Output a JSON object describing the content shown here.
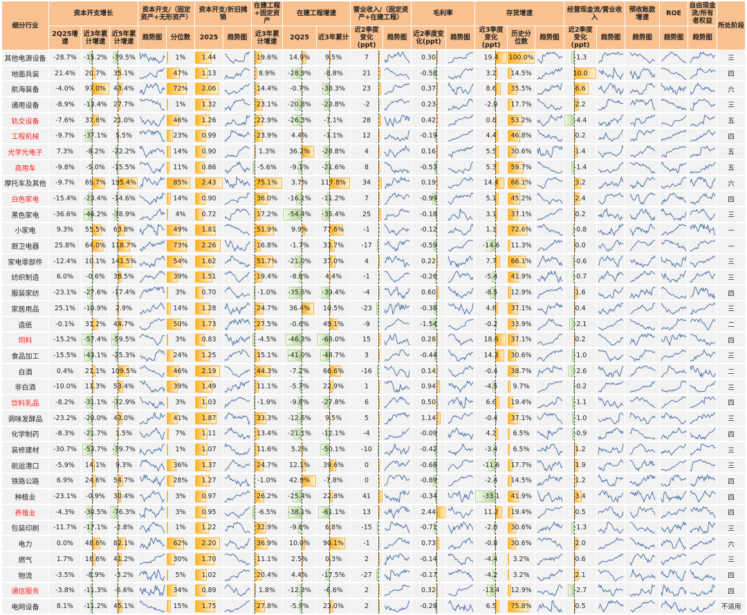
{
  "header": {
    "industry": "细分行业",
    "groups": {
      "capex_growth": "资本开支增长",
      "capex_ratio": "资本开支/（固定资产+无形资产）",
      "capex_dep": "资本开支/折旧摊销",
      "fa_cip": "在建工程+固定资产",
      "cip_growth": "在建工程增速",
      "rev_ratio": "营业收入/（固定资产+在建工程）",
      "gross_margin": "毛利率",
      "inventory": "存货增速",
      "ocf": "经营现金流/营业收入",
      "advance": "预收账款增速",
      "roe": "ROE",
      "fcf": "自由现金流/所有者权益",
      "stage": "所处阶段"
    },
    "sub": [
      "2Q25增速",
      "近3年累计增速",
      "近5年累计增速",
      "趋势图",
      "分位数",
      "2025",
      "趋势图",
      "近3年累计增速",
      "2Q25",
      "近3年累计",
      "近2季度变化(ppt)",
      "趋势图",
      "近2季度变化(ppt)",
      "趋势图",
      "近3季度变化(ppt)",
      "历史分位数",
      "趋势图",
      "近2季度变化(ppt)",
      "趋势图",
      "趋势图",
      "趋势图",
      "趋势图"
    ]
  },
  "colors": {
    "positive_bar": "#FFB422",
    "negative_bar": "#B9D89A",
    "header_bg": "#F9C190",
    "highlight_text": "#FF1E1E",
    "sparkline": "#4A6FA5"
  },
  "rows": [
    {
      "name": "其他电源设备",
      "hl": false,
      "capex_2q25": "-28.7%",
      "capex_3y": "-15.2%",
      "capex_5y": "-39.5%",
      "capex_ratio_pct": "1%",
      "capex_dep_2025": "1.44",
      "fa_cip_3y": "19.6%",
      "cip_2q25": "14.9%",
      "cip_3y": "9.5%",
      "rev_ratio_chg": "7",
      "gm_chg": "0.30",
      "inv_chg": "19.4",
      "inv_pct": "100.0%",
      "ocf_chg": "-1.3",
      "stage": "三"
    },
    {
      "name": "地面兵装",
      "hl": false,
      "capex_2q25": "21.4%",
      "capex_3y": "20.7%",
      "capex_5y": "35.1%",
      "capex_ratio_pct": "47%",
      "capex_dep_2025": "1.13",
      "fa_cip_3y": "8.9%",
      "cip_2q25": "-28.9%",
      "cip_3y": "-8.8%",
      "rev_ratio_chg": "21",
      "gm_chg": "-0.58",
      "inv_chg": "3.2",
      "inv_pct": "14.5%",
      "ocf_chg": "10.0",
      "stage": "四"
    },
    {
      "name": "航海装备",
      "hl": false,
      "capex_2q25": "-4.0%",
      "capex_3y": "97.0%",
      "capex_5y": "43.4%",
      "capex_ratio_pct": "72%",
      "capex_dep_2025": "2.06",
      "fa_cip_3y": "14.4%",
      "cip_2q25": "-0.7%",
      "cip_3y": "-38.3%",
      "rev_ratio_chg": "23",
      "gm_chg": "0.37",
      "inv_chg": "8.6",
      "inv_pct": "35.5%",
      "ocf_chg": "6.6",
      "stage": "六"
    },
    {
      "name": "通用设备",
      "hl": false,
      "capex_2q25": "-8.9%",
      "capex_3y": "-13.4%",
      "capex_5y": "27.7%",
      "capex_ratio_pct": "1%",
      "capex_dep_2025": "1.32",
      "fa_cip_3y": "23.1%",
      "cip_2q25": "-20.8%",
      "cip_3y": "-23.8%",
      "rev_ratio_chg": "-2",
      "gm_chg": "0.23",
      "inv_chg": "-2.0",
      "inv_pct": "17.7%",
      "ocf_chg": "2.2",
      "stage": "三"
    },
    {
      "name": "轨交设备",
      "hl": true,
      "capex_2q25": "-7.6%",
      "capex_3y": "37.6%",
      "capex_5y": "21.0%",
      "capex_ratio_pct": "46%",
      "capex_dep_2025": "1.26",
      "fa_cip_3y": "22.9%",
      "cip_2q25": "-26.3%",
      "cip_3y": "-7.1%",
      "rev_ratio_chg": "28",
      "gm_chg": "0.42",
      "inv_chg": "0.8",
      "inv_pct": "53.2%",
      "ocf_chg": "-4.4",
      "stage": "五"
    },
    {
      "name": "工程机械",
      "hl": true,
      "capex_2q25": "-9.7%",
      "capex_3y": "-37.1%",
      "capex_5y": "5.5%",
      "capex_ratio_pct": "23%",
      "capex_dep_2025": "0.99",
      "fa_cip_3y": "23.9%",
      "cip_2q25": "4.4%",
      "cip_3y": "-1.1%",
      "rev_ratio_chg": "12",
      "gm_chg": "-0.19",
      "inv_chg": "4.4",
      "inv_pct": "46.8%",
      "ocf_chg": "0.2",
      "stage": "四"
    },
    {
      "name": "光学光电子",
      "hl": true,
      "capex_2q25": "7.3%",
      "capex_3y": "-8.2%",
      "capex_5y": "-22.2%",
      "capex_ratio_pct": "14%",
      "capex_dep_2025": "0.90",
      "fa_cip_3y": "1.3%",
      "cip_2q25": "36.2%",
      "cip_3y": "-28.8%",
      "rev_ratio_chg": "4",
      "gm_chg": "0.16",
      "inv_chg": "5.5",
      "inv_pct": "30.6%",
      "ocf_chg": "1.4",
      "stage": "五"
    },
    {
      "name": "商用车",
      "hl": true,
      "capex_2q25": "-9.8%",
      "capex_3y": "-5.0%",
      "capex_5y": "-15.5%",
      "capex_ratio_pct": "11%",
      "capex_dep_2025": "0.86",
      "fa_cip_3y": "-5.6%",
      "cip_2q25": "-9.1%",
      "cip_3y": "-21.6%",
      "rev_ratio_chg": "8",
      "gm_chg": "-0.53",
      "inv_chg": "5.3",
      "inv_pct": "59.7%",
      "ocf_chg": "-1.4",
      "stage": "五"
    },
    {
      "name": "摩托车及其他",
      "hl": false,
      "capex_2q25": "-9.7%",
      "capex_3y": "69.7%",
      "capex_5y": "195.4%",
      "capex_ratio_pct": "85%",
      "capex_dep_2025": "2.43",
      "fa_cip_3y": "75.1%",
      "cip_2q25": "3.7%",
      "cip_3y": "117.8%",
      "rev_ratio_chg": "34",
      "gm_chg": "0.19",
      "inv_chg": "14.4",
      "inv_pct": "66.1%",
      "ocf_chg": "3.2",
      "stage": "六"
    },
    {
      "name": "白色家电",
      "hl": true,
      "capex_2q25": "-15.4%",
      "capex_3y": "-23.4%",
      "capex_5y": "-14.6%",
      "capex_ratio_pct": "14%",
      "capex_dep_2025": "0.90",
      "fa_cip_3y": "36.0%",
      "cip_2q25": "-16.1%",
      "cip_3y": "-11.2%",
      "rev_ratio_chg": "7",
      "gm_chg": "-0.99",
      "inv_chg": "5.1",
      "inv_pct": "45.2%",
      "ocf_chg": "2.4",
      "stage": "四"
    },
    {
      "name": "黑色家电",
      "hl": false,
      "capex_2q25": "-36.6%",
      "capex_3y": "-46.2%",
      "capex_5y": "-38.9%",
      "capex_ratio_pct": "4%",
      "capex_dep_2025": "0.72",
      "fa_cip_3y": "17.2%",
      "cip_2q25": "-54.4%",
      "cip_3y": "-35.4%",
      "rev_ratio_chg": "25",
      "gm_chg": "-0.18",
      "inv_chg": "3.1",
      "inv_pct": "37.1%",
      "ocf_chg": "0.2",
      "stage": "三"
    },
    {
      "name": "小家电",
      "hl": false,
      "capex_2q25": "9.3%",
      "capex_3y": "55.5%",
      "capex_5y": "63.8%",
      "capex_ratio_pct": "49%",
      "capex_dep_2025": "1.81",
      "fa_cip_3y": "51.9%",
      "cip_2q25": "9.9%",
      "cip_3y": "77.6%",
      "rev_ratio_chg": "-1",
      "gm_chg": "-0.12",
      "inv_chg": "1.1",
      "inv_pct": "72.6%",
      "ocf_chg": "-0.8",
      "stage": "一"
    },
    {
      "name": "厨卫电器",
      "hl": false,
      "capex_2q25": "25.8%",
      "capex_3y": "64.0%",
      "capex_5y": "118.7%",
      "capex_ratio_pct": "73%",
      "capex_dep_2025": "2.26",
      "fa_cip_3y": "16.8%",
      "cip_2q25": "-1.7%",
      "cip_3y": "33.7%",
      "rev_ratio_chg": "-17",
      "gm_chg": "-0.59",
      "inv_chg": "-14.6",
      "inv_pct": "11.3%",
      "ocf_chg": "0.0",
      "stage": "一"
    },
    {
      "name": "家电零部件",
      "hl": false,
      "capex_2q25": "-12.4%",
      "capex_3y": "10.1%",
      "capex_5y": "141.5%",
      "capex_ratio_pct": "54%",
      "capex_dep_2025": "1.62",
      "fa_cip_3y": "51.7%",
      "cip_2q25": "-21.0%",
      "cip_3y": "37.0%",
      "rev_ratio_chg": "4",
      "gm_chg": "0.22",
      "inv_chg": "7.7",
      "inv_pct": "66.1%",
      "ocf_chg": "-0.6",
      "stage": "三"
    },
    {
      "name": "纺织制造",
      "hl": false,
      "capex_2q25": "6.0%",
      "capex_3y": "-0.6%",
      "capex_5y": "38.5%",
      "capex_ratio_pct": "39%",
      "capex_dep_2025": "1.51",
      "fa_cip_3y": "19.4%",
      "cip_2q25": "-8.6%",
      "cip_3y": "4.4%",
      "rev_ratio_chg": "-1",
      "gm_chg": "-0.26",
      "inv_chg": "-5.4",
      "inv_pct": "41.9%",
      "ocf_chg": "-0.7",
      "stage": "三"
    },
    {
      "name": "服装家纺",
      "hl": false,
      "capex_2q25": "-23.1%",
      "capex_3y": "-27.6%",
      "capex_5y": "-17.4%",
      "capex_ratio_pct": "3%",
      "capex_dep_2025": "0.70",
      "fa_cip_3y": "-1.0%",
      "cip_2q25": "-35.6%",
      "cip_3y": "-39.4%",
      "rev_ratio_chg": "-4",
      "gm_chg": "0.60",
      "inv_chg": "-8.5",
      "inv_pct": "12.9%",
      "ocf_chg": "1.6",
      "stage": "四"
    },
    {
      "name": "家居用品",
      "hl": false,
      "capex_2q25": "25.1%",
      "capex_3y": "-10.9%",
      "capex_5y": "2.9%",
      "capex_ratio_pct": "14%",
      "capex_dep_2025": "1.28",
      "fa_cip_3y": "24.7%",
      "cip_2q25": "36.4%",
      "cip_3y": "10.5%",
      "rev_ratio_chg": "-23",
      "gm_chg": "-0.38",
      "inv_chg": "4.8",
      "inv_pct": "37.1%",
      "ocf_chg": "0.4",
      "stage": "三"
    },
    {
      "name": "造纸",
      "hl": false,
      "capex_2q25": "-0.1%",
      "capex_3y": "31.2%",
      "capex_5y": "44.7%",
      "capex_ratio_pct": "50%",
      "capex_dep_2025": "1.73",
      "fa_cip_3y": "27.5%",
      "cip_2q25": "-0.6%",
      "cip_3y": "49.1%",
      "rev_ratio_chg": "-9",
      "gm_chg": "-1.54",
      "inv_chg": "-0.2",
      "inv_pct": "33.9%",
      "ocf_chg": "-2.1",
      "stage": "二"
    },
    {
      "name": "饲料",
      "hl": true,
      "capex_2q25": "-15.2%",
      "capex_3y": "-57.4%",
      "capex_5y": "-59.5%",
      "capex_ratio_pct": "3%",
      "capex_dep_2025": "0.83",
      "fa_cip_3y": "-4.5%",
      "cip_2q25": "-46.3%",
      "cip_3y": "-68.0%",
      "rev_ratio_chg": "15",
      "gm_chg": "0.28",
      "inv_chg": "18.6",
      "inv_pct": "37.1%",
      "ocf_chg": "0.2",
      "stage": "四"
    },
    {
      "name": "食品加工",
      "hl": false,
      "capex_2q25": "-15.5%",
      "capex_3y": "-43.1%",
      "capex_5y": "-25.3%",
      "capex_ratio_pct": "24%",
      "capex_dep_2025": "1.25",
      "fa_cip_3y": "15.1%",
      "cip_2q25": "-41.0%",
      "cip_3y": "-48.7%",
      "rev_ratio_chg": "3",
      "gm_chg": "-0.44",
      "inv_chg": "14.3",
      "inv_pct": "30.6%",
      "ocf_chg": "-1.0",
      "stage": "三"
    },
    {
      "name": "白酒",
      "hl": false,
      "capex_2q25": "0.4%",
      "capex_3y": "21.1%",
      "capex_5y": "109.5%",
      "capex_ratio_pct": "46%",
      "capex_dep_2025": "2.19",
      "fa_cip_3y": "44.3%",
      "cip_2q25": "-7.2%",
      "cip_3y": "66.6%",
      "rev_ratio_chg": "-16",
      "gm_chg": "0.14",
      "inv_chg": "-0.4",
      "inv_pct": "38.7%",
      "ocf_chg": "-2.6",
      "stage": "二"
    },
    {
      "name": "非白酒",
      "hl": false,
      "capex_2q25": "-10.0%",
      "capex_3y": "11.3%",
      "capex_5y": "53.4%",
      "capex_ratio_pct": "39%",
      "capex_dep_2025": "1.49",
      "fa_cip_3y": "11.1%",
      "cip_2q25": "-5.7%",
      "cip_3y": "22.9%",
      "rev_ratio_chg": "1",
      "gm_chg": "0.94",
      "inv_chg": "-4.5",
      "inv_pct": "9.7%",
      "ocf_chg": "-0.2",
      "stage": "三"
    },
    {
      "name": "饮料乳品",
      "hl": true,
      "capex_2q25": "-8.2%",
      "capex_3y": "-31.1%",
      "capex_5y": "-32.9%",
      "capex_ratio_pct": "3%",
      "capex_dep_2025": "1.03",
      "fa_cip_3y": "-1.9%",
      "cip_2q25": "-9.8%",
      "cip_3y": "-27.8%",
      "rev_ratio_chg": "6",
      "gm_chg": "0.50",
      "inv_chg": "6.6",
      "inv_pct": "19.4%",
      "ocf_chg": "-1.1",
      "stage": "四"
    },
    {
      "name": "调味发酵品",
      "hl": false,
      "capex_2q25": "-23.2%",
      "capex_3y": "-20.0%",
      "capex_5y": "43.0%",
      "capex_ratio_pct": "41%",
      "capex_dep_2025": "1.87",
      "fa_cip_3y": "33.3%",
      "cip_2q25": "-12.6%",
      "cip_3y": "9.5%",
      "rev_ratio_chg": "5",
      "gm_chg": "1.14",
      "inv_chg": "-0.4",
      "inv_pct": "37.1%",
      "ocf_chg": "-1.0",
      "stage": "三"
    },
    {
      "name": "化学制药",
      "hl": false,
      "capex_2q25": "-8.3%",
      "capex_3y": "-21.7%",
      "capex_5y": "1.5%",
      "capex_ratio_pct": "7%",
      "capex_dep_2025": "1.11",
      "fa_cip_3y": "13.4%",
      "cip_2q25": "-21.1%",
      "cip_3y": "-12.1%",
      "rev_ratio_chg": "-4",
      "gm_chg": "-0.09",
      "inv_chg": "4.2",
      "inv_pct": "6.5%",
      "ocf_chg": "-0.9",
      "stage": "四"
    },
    {
      "name": "装修建材",
      "hl": false,
      "capex_2q25": "-30.7%",
      "capex_3y": "-53.7%",
      "capex_5y": "-39.7%",
      "capex_ratio_pct": "1%",
      "capex_dep_2025": "1.07",
      "fa_cip_3y": "11.6%",
      "cip_2q25": "5.2%",
      "cip_3y": "-50.1%",
      "rev_ratio_chg": "-10",
      "gm_chg": "-0.42",
      "inv_chg": "-3.4",
      "inv_pct": "6.5%",
      "ocf_chg": "1.2",
      "stage": "三"
    },
    {
      "name": "航运港口",
      "hl": false,
      "capex_2q25": "-5.9%",
      "capex_3y": "14.1%",
      "capex_5y": "9.3%",
      "capex_ratio_pct": "36%",
      "capex_dep_2025": "1.37",
      "fa_cip_3y": "24.7%",
      "cip_2q25": "12.1%",
      "cip_3y": "39.6%",
      "rev_ratio_chg": "0",
      "gm_chg": "-0.68",
      "inv_chg": "-11.6",
      "inv_pct": "17.7%",
      "ocf_chg": "1.9",
      "stage": "三"
    },
    {
      "name": "铁路公路",
      "hl": false,
      "capex_2q25": "6.9%",
      "capex_3y": "24.6%",
      "capex_5y": "54.7%",
      "capex_ratio_pct": "28%",
      "capex_dep_2025": "1.27",
      "fa_cip_3y": "-1.0%",
      "cip_2q25": "42.9%",
      "cip_3y": "-7.8%",
      "rev_ratio_chg": "0",
      "gm_chg": "-0.89",
      "inv_chg": "-2.4",
      "inv_pct": "14.5%",
      "ocf_chg": "1.2",
      "stage": "四"
    },
    {
      "name": "种植业",
      "hl": false,
      "capex_2q25": "-23.1%",
      "capex_3y": "-0.9%",
      "capex_5y": "30.4%",
      "capex_ratio_pct": "3%",
      "capex_dep_2025": "0.97",
      "fa_cip_3y": "26.2%",
      "cip_2q25": "-25.4%",
      "cip_3y": "22.8%",
      "rev_ratio_chg": "41",
      "gm_chg": "-0.34",
      "inv_chg": "-33.1",
      "inv_pct": "41.9%",
      "ocf_chg": "3.4",
      "stage": "四"
    },
    {
      "name": "养殖业",
      "hl": true,
      "capex_2q25": "-4.3%",
      "capex_3y": "-30.5%",
      "capex_5y": "-76.3%",
      "capex_ratio_pct": "3%",
      "capex_dep_2025": "0.95",
      "fa_cip_3y": "-6.5%",
      "cip_2q25": "-38.1%",
      "cip_3y": "-61.1%",
      "rev_ratio_chg": "13",
      "gm_chg": "2.44",
      "inv_chg": "11.2",
      "inv_pct": "19.4%",
      "ocf_chg": "0.5",
      "stage": "四"
    },
    {
      "name": "包装印刷",
      "hl": false,
      "capex_2q25": "-11.7%",
      "capex_3y": "-17.1%",
      "capex_5y": "-2.8%",
      "capex_ratio_pct": "1%",
      "capex_dep_2025": "1.22",
      "fa_cip_3y": "32.9%",
      "cip_2q25": "-9.6%",
      "cip_3y": "6.8%",
      "rev_ratio_chg": "-15",
      "gm_chg": "-0.71",
      "inv_chg": "-2.0",
      "inv_pct": "30.6%",
      "ocf_chg": "-1.3",
      "stage": "三"
    },
    {
      "name": "电力",
      "hl": false,
      "capex_2q25": "0.0%",
      "capex_3y": "48.6%",
      "capex_5y": "82.1%",
      "capex_ratio_pct": "62%",
      "capex_dep_2025": "2.20",
      "fa_cip_3y": "36.9%",
      "cip_2q25": "10.0%",
      "cip_3y": "90.1%",
      "rev_ratio_chg": "-1",
      "gm_chg": "0.73",
      "inv_chg": "-0.8",
      "inv_pct": "30.6%",
      "ocf_chg": "2.0",
      "stage": "六"
    },
    {
      "name": "燃气",
      "hl": false,
      "capex_2q25": "1.7%",
      "capex_3y": "18.6%",
      "capex_5y": "41.2%",
      "capex_ratio_pct": "30%",
      "capex_dep_2025": "1.70",
      "fa_cip_3y": "11.1%",
      "cip_2q25": "2.5%",
      "cip_3y": "0.3%",
      "rev_ratio_chg": "2",
      "gm_chg": "-0.14",
      "inv_chg": "-4.4",
      "inv_pct": "3.2%",
      "ocf_chg": "0.6",
      "stage": "三"
    },
    {
      "name": "物流",
      "hl": false,
      "capex_2q25": "-3.5%",
      "capex_3y": "-8.9%",
      "capex_5y": "-3.2%",
      "capex_ratio_pct": "5%",
      "capex_dep_2025": "1.02",
      "fa_cip_3y": "20.4%",
      "cip_2q25": "4.4%",
      "cip_3y": "-17.5%",
      "rev_ratio_chg": "-27",
      "gm_chg": "-0.17",
      "inv_chg": "-4.2",
      "inv_pct": "3.2%",
      "ocf_chg": "2.1",
      "stage": "四"
    },
    {
      "name": "通信服务",
      "hl": true,
      "capex_2q25": "-3.8%",
      "capex_3y": "-11.3%",
      "capex_5y": "-6.6%",
      "capex_ratio_pct": "34%",
      "capex_dep_2025": "0.89",
      "fa_cip_3y": "1.8%",
      "cip_2q25": "-12.3%",
      "cip_3y": "-6.6%",
      "rev_ratio_chg": "2",
      "gm_chg": "0.32",
      "inv_chg": "-13.4",
      "inv_pct": "12.9%",
      "ocf_chg": "-2.7",
      "stage": "四"
    },
    {
      "name": "电网设备",
      "hl": false,
      "capex_2q25": "8.1%",
      "capex_3y": "-11.2%",
      "capex_5y": "45.1%",
      "capex_ratio_pct": "15%",
      "capex_dep_2025": "1.75",
      "fa_cip_3y": "27.8%",
      "cip_2q25": "-5.9%",
      "cip_3y": "23.0%",
      "rev_ratio_chg": "2",
      "gm_chg": "-0.28",
      "inv_chg": "6.5",
      "inv_pct": "75.8%",
      "ocf_chg": "0.5",
      "stage": "不适用"
    }
  ]
}
